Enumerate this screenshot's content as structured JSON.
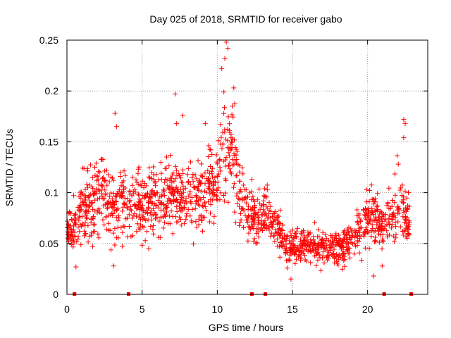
{
  "chart_data": {
    "type": "scatter",
    "title": "Day 025 of 2018, SRMTID for receiver gabo",
    "xlabel": "GPS time / hours",
    "ylabel": "SRMTID / TECUs",
    "xlim": [
      0,
      24
    ],
    "ylim": [
      0,
      0.25
    ],
    "xticks": [
      0,
      5,
      10,
      15,
      20
    ],
    "xtick_labels": [
      "0",
      "5",
      "10",
      "15",
      "20"
    ],
    "yticks": [
      0,
      0.05,
      0.1,
      0.15,
      0.2,
      0.25
    ],
    "ytick_labels": [
      "0",
      "0.05",
      "0.1",
      "0.15",
      "0.2",
      "0.25"
    ],
    "grid": true,
    "marker": "+",
    "color": "#ff0000",
    "envelope": [
      {
        "x": 0.0,
        "mean": 0.062,
        "spread": 0.018
      },
      {
        "x": 0.5,
        "mean": 0.066,
        "spread": 0.02
      },
      {
        "x": 1.0,
        "mean": 0.08,
        "spread": 0.028
      },
      {
        "x": 1.5,
        "mean": 0.09,
        "spread": 0.03
      },
      {
        "x": 2.0,
        "mean": 0.095,
        "spread": 0.032
      },
      {
        "x": 2.5,
        "mean": 0.09,
        "spread": 0.03
      },
      {
        "x": 3.0,
        "mean": 0.088,
        "spread": 0.03
      },
      {
        "x": 3.5,
        "mean": 0.085,
        "spread": 0.03
      },
      {
        "x": 4.0,
        "mean": 0.085,
        "spread": 0.028
      },
      {
        "x": 5.0,
        "mean": 0.088,
        "spread": 0.028
      },
      {
        "x": 6.0,
        "mean": 0.092,
        "spread": 0.028
      },
      {
        "x": 7.0,
        "mean": 0.095,
        "spread": 0.03
      },
      {
        "x": 8.0,
        "mean": 0.095,
        "spread": 0.028
      },
      {
        "x": 9.0,
        "mean": 0.098,
        "spread": 0.028
      },
      {
        "x": 10.0,
        "mean": 0.11,
        "spread": 0.032
      },
      {
        "x": 10.5,
        "mean": 0.15,
        "spread": 0.05
      },
      {
        "x": 11.0,
        "mean": 0.14,
        "spread": 0.04
      },
      {
        "x": 11.5,
        "mean": 0.1,
        "spread": 0.03
      },
      {
        "x": 12.0,
        "mean": 0.08,
        "spread": 0.022
      },
      {
        "x": 12.5,
        "mean": 0.075,
        "spread": 0.02
      },
      {
        "x": 13.0,
        "mean": 0.08,
        "spread": 0.02
      },
      {
        "x": 13.5,
        "mean": 0.078,
        "spread": 0.02
      },
      {
        "x": 14.0,
        "mean": 0.065,
        "spread": 0.018
      },
      {
        "x": 14.5,
        "mean": 0.05,
        "spread": 0.014
      },
      {
        "x": 15.0,
        "mean": 0.045,
        "spread": 0.013
      },
      {
        "x": 16.0,
        "mean": 0.048,
        "spread": 0.014
      },
      {
        "x": 17.0,
        "mean": 0.046,
        "spread": 0.014
      },
      {
        "x": 18.0,
        "mean": 0.045,
        "spread": 0.013
      },
      {
        "x": 19.0,
        "mean": 0.055,
        "spread": 0.015
      },
      {
        "x": 19.5,
        "mean": 0.062,
        "spread": 0.017
      },
      {
        "x": 20.0,
        "mean": 0.075,
        "spread": 0.022
      },
      {
        "x": 20.5,
        "mean": 0.08,
        "spread": 0.024
      },
      {
        "x": 21.0,
        "mean": 0.065,
        "spread": 0.02
      },
      {
        "x": 21.5,
        "mean": 0.075,
        "spread": 0.024
      },
      {
        "x": 22.0,
        "mean": 0.09,
        "spread": 0.03
      },
      {
        "x": 22.5,
        "mean": 0.075,
        "spread": 0.022
      },
      {
        "x": 22.8,
        "mean": 0.07,
        "spread": 0.02
      }
    ],
    "outliers": [
      {
        "x": 7.2,
        "y": 0.197
      },
      {
        "x": 3.2,
        "y": 0.178
      },
      {
        "x": 3.3,
        "y": 0.165
      },
      {
        "x": 10.6,
        "y": 0.248
      },
      {
        "x": 10.7,
        "y": 0.242
      },
      {
        "x": 10.5,
        "y": 0.232
      },
      {
        "x": 10.3,
        "y": 0.222
      },
      {
        "x": 11.1,
        "y": 0.203
      },
      {
        "x": 11.0,
        "y": 0.185
      },
      {
        "x": 22.4,
        "y": 0.172
      },
      {
        "x": 22.5,
        "y": 0.168
      },
      {
        "x": 22.4,
        "y": 0.154
      },
      {
        "x": 9.2,
        "y": 0.168
      },
      {
        "x": 7.7,
        "y": 0.176
      },
      {
        "x": 7.3,
        "y": 0.168
      },
      {
        "x": 0.6,
        "y": 0.027
      },
      {
        "x": 3.1,
        "y": 0.028
      },
      {
        "x": 14.9,
        "y": 0.015
      },
      {
        "x": 20.4,
        "y": 0.018
      }
    ],
    "gap_markers_x": [
      0.5,
      4.1,
      12.3,
      13.2,
      21.1,
      22.9
    ],
    "point_count": 1600
  }
}
